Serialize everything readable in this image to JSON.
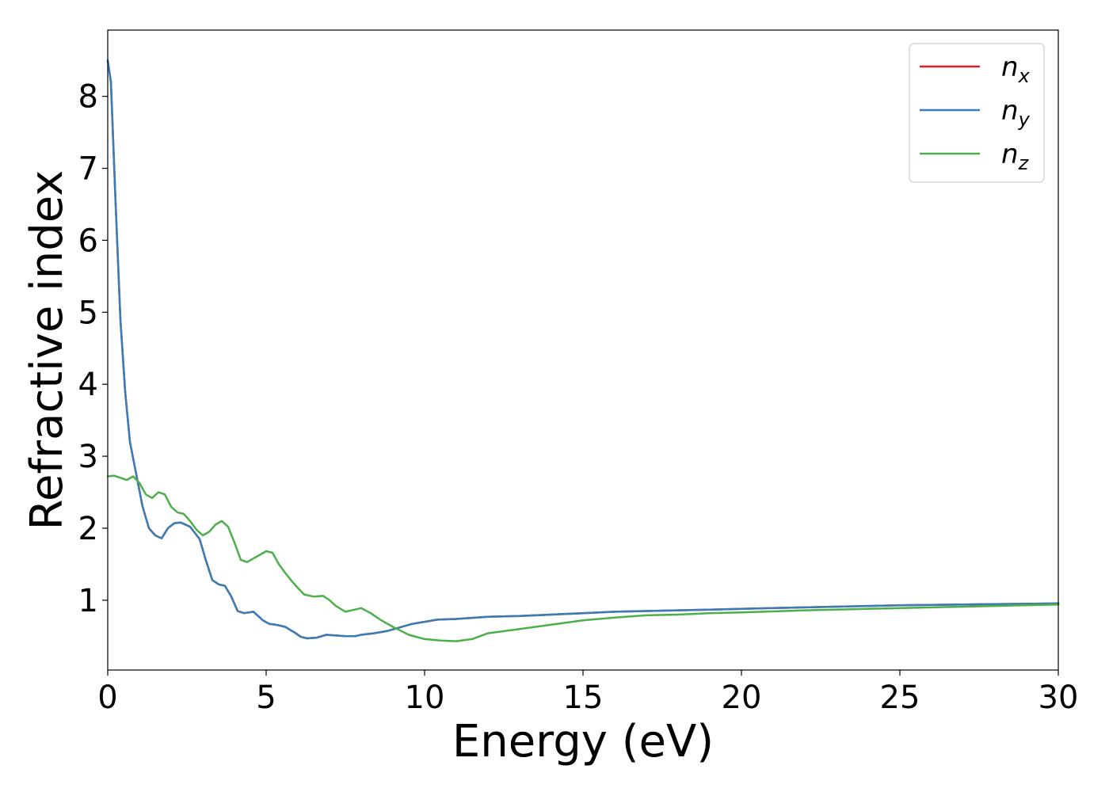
{
  "chart_data": {
    "type": "line",
    "title": "",
    "xlabel": "Energy (eV)",
    "ylabel": "Refractive index",
    "xlim": [
      0,
      30
    ],
    "ylim": [
      0.03,
      8.92
    ],
    "xticks": [
      "0",
      "5",
      "10",
      "15",
      "20",
      "25",
      "30"
    ],
    "yticks": [
      "1",
      "2",
      "3",
      "4",
      "5",
      "6",
      "7",
      "8"
    ],
    "grid": false,
    "legend_position": "top-right",
    "series": [
      {
        "name": "n",
        "sub": "x",
        "color": "#e41a1c",
        "x": [
          0,
          0.1,
          0.25,
          0.4,
          0.55,
          0.7,
          0.9,
          1.1,
          1.3,
          1.5,
          1.7,
          1.9,
          2.1,
          2.3,
          2.6,
          2.9,
          3.1,
          3.3,
          3.5,
          3.7,
          3.9,
          4.1,
          4.3,
          4.6,
          4.9,
          5.1,
          5.3,
          5.6,
          5.9,
          6.1,
          6.3,
          6.6,
          6.9,
          7.2,
          7.5,
          7.8,
          8.0,
          8.4,
          8.8,
          9.2,
          9.6,
          10.0,
          10.4,
          11.0,
          12.0,
          13.0,
          14.0,
          15.0,
          16.0,
          17.0,
          18.0,
          19.0,
          20.0,
          21.0,
          22.0,
          23.0,
          24.0,
          25.0,
          26.0,
          27.0,
          28.0,
          29.0,
          30.0
        ],
        "y": [
          8.5,
          8.2,
          6.5,
          4.9,
          3.9,
          3.2,
          2.75,
          2.3,
          2.0,
          1.9,
          1.86,
          2.0,
          2.07,
          2.08,
          2.02,
          1.85,
          1.55,
          1.28,
          1.22,
          1.2,
          1.05,
          0.85,
          0.82,
          0.84,
          0.72,
          0.67,
          0.66,
          0.63,
          0.55,
          0.49,
          0.47,
          0.48,
          0.52,
          0.51,
          0.5,
          0.5,
          0.52,
          0.54,
          0.57,
          0.62,
          0.67,
          0.7,
          0.73,
          0.74,
          0.77,
          0.78,
          0.8,
          0.82,
          0.84,
          0.85,
          0.86,
          0.87,
          0.88,
          0.89,
          0.9,
          0.91,
          0.92,
          0.93,
          0.935,
          0.94,
          0.945,
          0.95,
          0.955
        ]
      },
      {
        "name": "n",
        "sub": "y",
        "color": "#377eb8",
        "x": [
          0,
          0.1,
          0.25,
          0.4,
          0.55,
          0.7,
          0.9,
          1.1,
          1.3,
          1.5,
          1.7,
          1.9,
          2.1,
          2.3,
          2.6,
          2.9,
          3.1,
          3.3,
          3.5,
          3.7,
          3.9,
          4.1,
          4.3,
          4.6,
          4.9,
          5.1,
          5.3,
          5.6,
          5.9,
          6.1,
          6.3,
          6.6,
          6.9,
          7.2,
          7.5,
          7.8,
          8.0,
          8.4,
          8.8,
          9.2,
          9.6,
          10.0,
          10.4,
          11.0,
          12.0,
          13.0,
          14.0,
          15.0,
          16.0,
          17.0,
          18.0,
          19.0,
          20.0,
          21.0,
          22.0,
          23.0,
          24.0,
          25.0,
          26.0,
          27.0,
          28.0,
          29.0,
          30.0
        ],
        "y": [
          8.5,
          8.2,
          6.5,
          4.9,
          3.9,
          3.2,
          2.75,
          2.3,
          2.0,
          1.9,
          1.86,
          2.0,
          2.07,
          2.08,
          2.02,
          1.85,
          1.55,
          1.28,
          1.22,
          1.2,
          1.05,
          0.85,
          0.82,
          0.84,
          0.72,
          0.67,
          0.66,
          0.63,
          0.55,
          0.49,
          0.47,
          0.48,
          0.52,
          0.51,
          0.5,
          0.5,
          0.52,
          0.54,
          0.57,
          0.62,
          0.67,
          0.7,
          0.73,
          0.74,
          0.77,
          0.78,
          0.8,
          0.82,
          0.84,
          0.85,
          0.86,
          0.87,
          0.88,
          0.89,
          0.9,
          0.91,
          0.92,
          0.93,
          0.935,
          0.94,
          0.945,
          0.95,
          0.955
        ]
      },
      {
        "name": "n",
        "sub": "z",
        "color": "#4daf4a",
        "x": [
          0,
          0.2,
          0.4,
          0.6,
          0.8,
          1.0,
          1.2,
          1.4,
          1.6,
          1.8,
          2.0,
          2.2,
          2.4,
          2.6,
          2.8,
          3.0,
          3.2,
          3.4,
          3.6,
          3.8,
          4.0,
          4.2,
          4.4,
          4.6,
          4.8,
          5.0,
          5.2,
          5.4,
          5.6,
          5.8,
          6.0,
          6.2,
          6.5,
          6.8,
          7.0,
          7.2,
          7.5,
          7.8,
          8.0,
          8.3,
          8.6,
          9.0,
          9.5,
          10.0,
          10.5,
          11.0,
          11.5,
          12.0,
          13.0,
          14.0,
          15.0,
          16.0,
          17.0,
          18.0,
          19.0,
          20.0,
          22.0,
          24.0,
          26.0,
          28.0,
          30.0
        ],
        "y": [
          2.72,
          2.73,
          2.7,
          2.67,
          2.72,
          2.63,
          2.47,
          2.42,
          2.5,
          2.47,
          2.3,
          2.22,
          2.2,
          2.1,
          1.98,
          1.9,
          1.95,
          2.05,
          2.1,
          2.02,
          1.8,
          1.56,
          1.53,
          1.58,
          1.63,
          1.68,
          1.66,
          1.5,
          1.38,
          1.27,
          1.17,
          1.08,
          1.05,
          1.06,
          1.0,
          0.92,
          0.84,
          0.87,
          0.89,
          0.82,
          0.73,
          0.63,
          0.52,
          0.46,
          0.44,
          0.43,
          0.46,
          0.54,
          0.6,
          0.66,
          0.72,
          0.76,
          0.79,
          0.8,
          0.82,
          0.83,
          0.86,
          0.88,
          0.9,
          0.92,
          0.94
        ]
      }
    ]
  }
}
